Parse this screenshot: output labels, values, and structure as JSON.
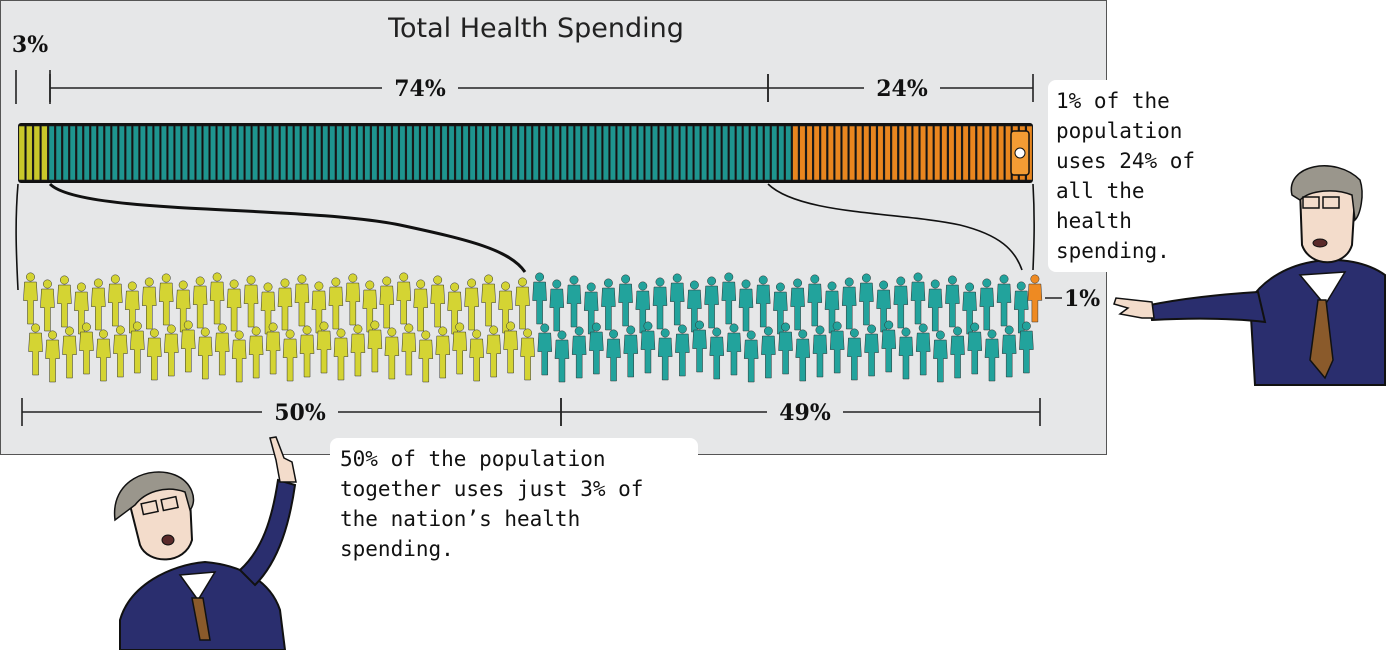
{
  "title": "Total Health Spending",
  "chart_data": {
    "type": "bar",
    "title": "Total Health Spending",
    "spending_segments": [
      {
        "label": "3%",
        "value": 3,
        "color": "#c9c82a",
        "population_group": "bottom 50%"
      },
      {
        "label": "74%",
        "value": 74,
        "color": "#1e958f",
        "population_group": "middle 49%"
      },
      {
        "label": "24%",
        "value": 24,
        "color": "#e9861f",
        "population_group": "top 1%"
      }
    ],
    "population_segments": [
      {
        "label": "50%",
        "value": 50,
        "color": "#d4d433"
      },
      {
        "label": "49%",
        "value": 49,
        "color": "#22a39c"
      },
      {
        "label": "1%",
        "value": 1,
        "color": "#ee8a22"
      }
    ]
  },
  "labels": {
    "top_3": "3%",
    "top_74": "74%",
    "top_24": "24%",
    "bottom_50": "50%",
    "bottom_49": "49%",
    "side_1": "1%"
  },
  "callouts": {
    "top_right": "1% of the population uses 24% of all the health spending.",
    "bottom": "50% of the population together uses just 3% of the nation’s health spending."
  },
  "colors": {
    "panel_bg": "#e6e7e8",
    "yellow": "#d4d433",
    "teal": "#22a39c",
    "orange": "#ee8a22",
    "suit": "#2a2e6e",
    "tie": "#8a5a2b",
    "skin": "#f3dccb"
  }
}
